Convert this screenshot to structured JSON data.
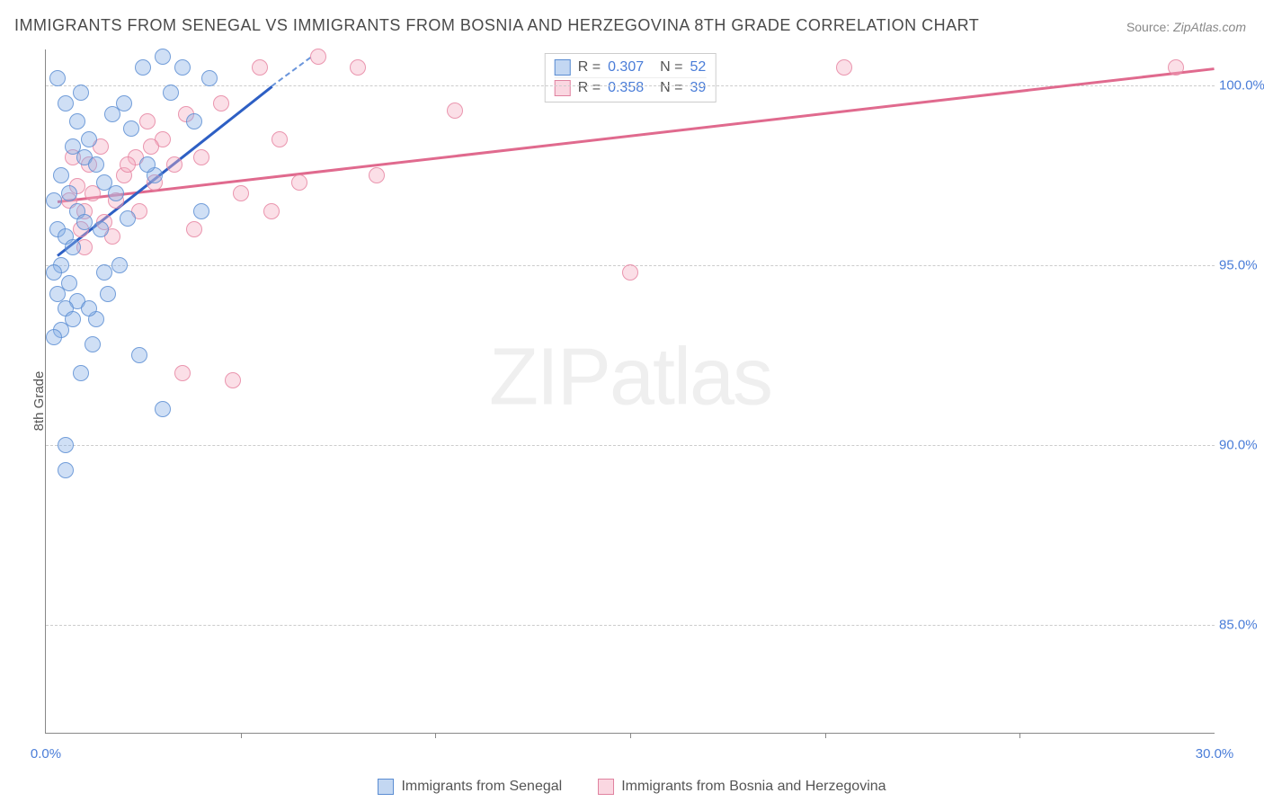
{
  "title": "IMMIGRANTS FROM SENEGAL VS IMMIGRANTS FROM BOSNIA AND HERZEGOVINA 8TH GRADE CORRELATION CHART",
  "source_label": "Source:",
  "source_value": "ZipAtlas.com",
  "ylabel": "8th Grade",
  "watermark_a": "ZIP",
  "watermark_b": "atlas",
  "chart": {
    "type": "scatter",
    "background_color": "#ffffff",
    "grid_color": "#cccccc",
    "x_min": 0.0,
    "x_max": 30.0,
    "y_min": 82.0,
    "y_max": 101.0,
    "x_ticks_major": [
      0.0,
      30.0
    ],
    "x_tick_labels": [
      "0.0%",
      "30.0%"
    ],
    "x_ticks_minor": [
      5.0,
      10.0,
      15.0,
      20.0,
      25.0
    ],
    "y_ticks": [
      85.0,
      90.0,
      95.0,
      100.0
    ],
    "y_tick_labels": [
      "85.0%",
      "90.0%",
      "95.0%",
      "100.0%"
    ]
  },
  "series": {
    "blue": {
      "label": "Immigrants from Senegal",
      "color_fill": "rgba(135,175,230,0.4)",
      "color_stroke": "#5a8cd2",
      "r": "0.307",
      "n": "52",
      "trend": {
        "x1": 0.3,
        "y1": 95.3,
        "x2": 6.8,
        "y2": 100.8,
        "color": "#2d5fc4"
      },
      "points": [
        [
          0.3,
          100.2
        ],
        [
          0.5,
          99.5
        ],
        [
          0.8,
          99.0
        ],
        [
          1.0,
          98.0
        ],
        [
          0.4,
          97.5
        ],
        [
          0.6,
          97.0
        ],
        [
          0.2,
          96.8
        ],
        [
          0.8,
          96.5
        ],
        [
          1.0,
          96.2
        ],
        [
          0.3,
          96.0
        ],
        [
          0.5,
          95.8
        ],
        [
          0.7,
          95.5
        ],
        [
          0.4,
          95.0
        ],
        [
          0.2,
          94.8
        ],
        [
          0.6,
          94.5
        ],
        [
          0.3,
          94.2
        ],
        [
          0.8,
          94.0
        ],
        [
          0.5,
          93.8
        ],
        [
          0.7,
          93.5
        ],
        [
          0.4,
          93.2
        ],
        [
          0.2,
          93.0
        ],
        [
          1.2,
          92.8
        ],
        [
          0.5,
          90.0
        ],
        [
          0.5,
          89.3
        ],
        [
          1.5,
          97.3
        ],
        [
          1.8,
          97.0
        ],
        [
          2.0,
          99.5
        ],
        [
          2.2,
          98.8
        ],
        [
          2.5,
          100.5
        ],
        [
          2.8,
          97.5
        ],
        [
          3.0,
          100.8
        ],
        [
          3.2,
          99.8
        ],
        [
          3.5,
          100.5
        ],
        [
          3.8,
          99.0
        ],
        [
          4.0,
          96.5
        ],
        [
          4.2,
          100.2
        ],
        [
          3.0,
          91.0
        ],
        [
          1.3,
          93.5
        ],
        [
          1.6,
          94.2
        ],
        [
          1.9,
          95.0
        ],
        [
          2.4,
          92.5
        ],
        [
          1.1,
          98.5
        ],
        [
          1.4,
          96.0
        ],
        [
          1.7,
          99.2
        ],
        [
          2.1,
          96.3
        ],
        [
          2.6,
          97.8
        ],
        [
          0.9,
          92.0
        ],
        [
          1.1,
          93.8
        ],
        [
          1.3,
          97.8
        ],
        [
          1.5,
          94.8
        ],
        [
          0.7,
          98.3
        ],
        [
          0.9,
          99.8
        ]
      ]
    },
    "pink": {
      "label": "Immigrants from Bosnia and Herzegovina",
      "color_fill": "rgba(245,175,195,0.4)",
      "color_stroke": "#e082a0",
      "r": "0.358",
      "n": "39",
      "trend": {
        "x1": 0.3,
        "y1": 96.8,
        "x2": 30.0,
        "y2": 100.5,
        "color": "#e06a8e"
      },
      "points": [
        [
          0.6,
          96.8
        ],
        [
          0.8,
          97.2
        ],
        [
          1.0,
          96.5
        ],
        [
          1.2,
          97.0
        ],
        [
          1.5,
          96.2
        ],
        [
          1.8,
          96.8
        ],
        [
          2.0,
          97.5
        ],
        [
          2.3,
          98.0
        ],
        [
          2.6,
          99.0
        ],
        [
          2.8,
          97.3
        ],
        [
          3.0,
          98.5
        ],
        [
          3.3,
          97.8
        ],
        [
          3.6,
          99.2
        ],
        [
          3.8,
          96.0
        ],
        [
          3.5,
          92.0
        ],
        [
          4.8,
          91.8
        ],
        [
          4.0,
          98.0
        ],
        [
          4.5,
          99.5
        ],
        [
          5.0,
          97.0
        ],
        [
          5.5,
          100.5
        ],
        [
          6.0,
          98.5
        ],
        [
          6.5,
          97.3
        ],
        [
          7.0,
          100.8
        ],
        [
          8.0,
          100.5
        ],
        [
          8.5,
          97.5
        ],
        [
          10.5,
          99.3
        ],
        [
          15.0,
          94.8
        ],
        [
          20.5,
          100.5
        ],
        [
          29.0,
          100.5
        ],
        [
          1.0,
          95.5
        ],
        [
          1.4,
          98.3
        ],
        [
          1.7,
          95.8
        ],
        [
          2.1,
          97.8
        ],
        [
          2.4,
          96.5
        ],
        [
          2.7,
          98.3
        ],
        [
          1.1,
          97.8
        ],
        [
          0.7,
          98.0
        ],
        [
          0.9,
          96.0
        ],
        [
          5.8,
          96.5
        ]
      ]
    }
  },
  "stats_labels": {
    "r": "R =",
    "n": "N ="
  },
  "legend": {
    "blue": "Immigrants from Senegal",
    "pink": "Immigrants from Bosnia and Herzegovina"
  }
}
